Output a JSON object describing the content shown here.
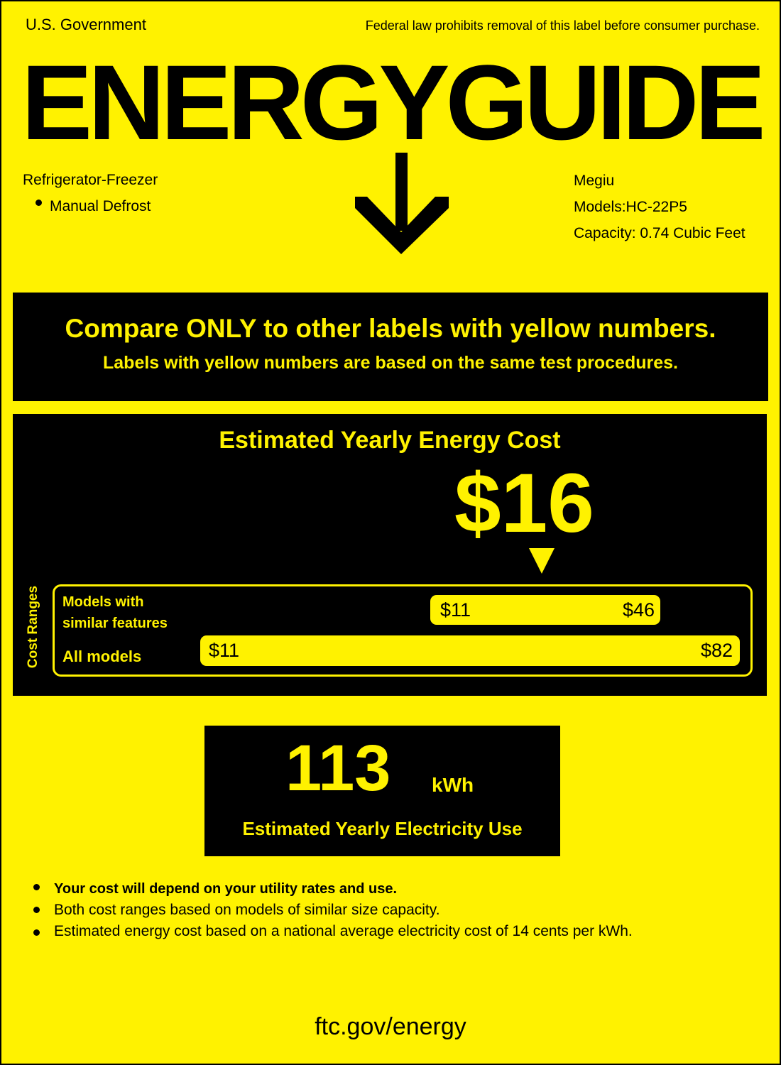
{
  "header": {
    "government": "U.S. Government",
    "legal_notice": "Federal law prohibits removal of this label before consumer purchase.",
    "title": "ENERGYGUIDE"
  },
  "product": {
    "type": "Refrigerator-Freezer",
    "feature": "Manual Defrost",
    "brand": "Megiu",
    "model": "Models:HC-22P5",
    "capacity": "Capacity: 0.74 Cubic Feet"
  },
  "compare_box": {
    "line1": "Compare ONLY to other labels with yellow numbers.",
    "line2": "Labels with yellow numbers are based on the same test procedures."
  },
  "cost": {
    "title": "Estimated Yearly Energy Cost",
    "value": "$16",
    "value_number": 16,
    "ranges_label": "Cost Ranges",
    "similar": {
      "label_line1": "Models with",
      "label_line2": "similar features",
      "min": "$11",
      "max": "$46"
    },
    "all": {
      "label": "All models",
      "min": "$11",
      "max": "$82"
    }
  },
  "electricity": {
    "value": "113",
    "unit": "kWh",
    "label": "Estimated Yearly Electricity Use"
  },
  "notes": [
    "Your cost will depend on your utility rates and use.",
    "Both cost ranges based on models of similar size capacity.",
    "Estimated energy cost based on a national average electricity cost of 14 cents per kWh."
  ],
  "footer": {
    "url": "ftc.gov/energy"
  },
  "colors": {
    "label_yellow": "#fff200",
    "ink": "#000000"
  }
}
